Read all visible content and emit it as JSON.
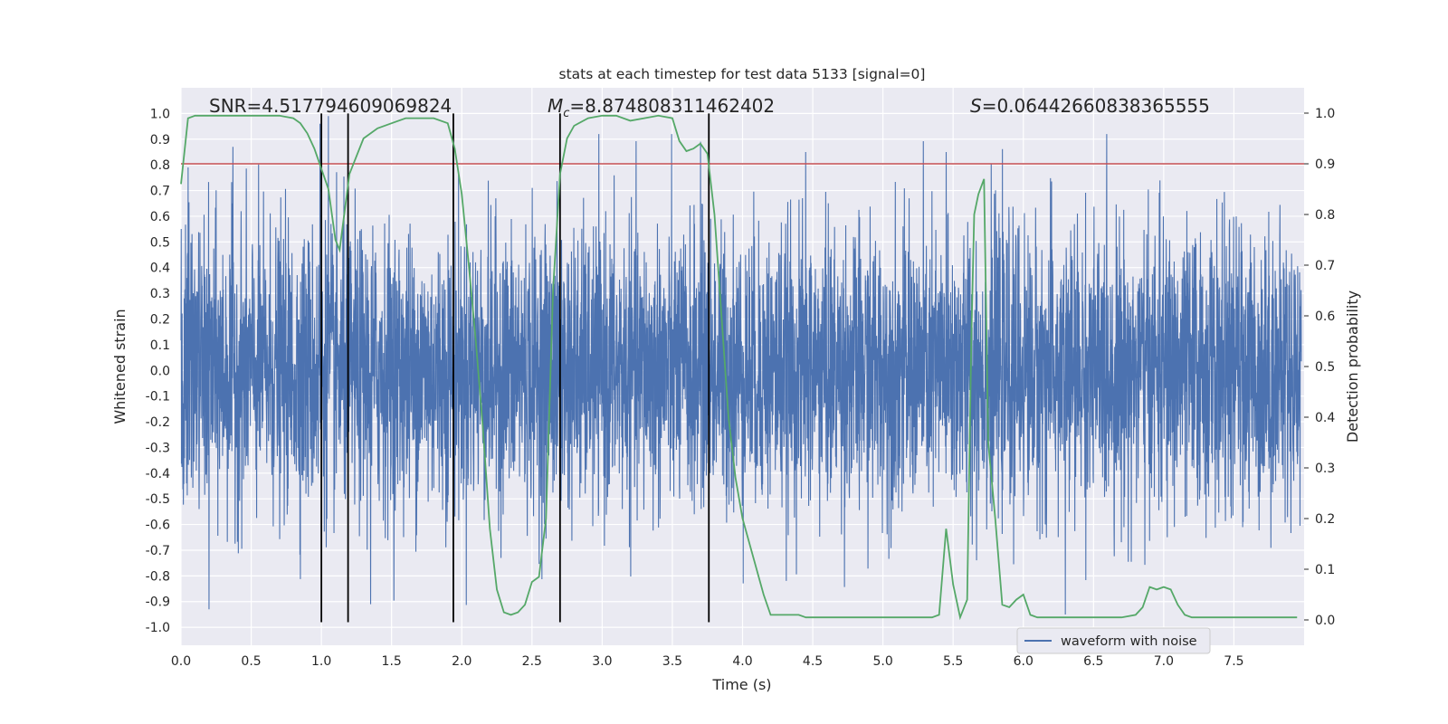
{
  "chart_data": {
    "type": "line",
    "title": "stats at each timestep for test data 5133 [signal=0]",
    "xlabel": "Time (s)",
    "ylabel_left": "Whitened strain",
    "ylabel_right": "Detection probability",
    "xlim": [
      0.0,
      8.0
    ],
    "ylim_left": [
      -1.07,
      1.1
    ],
    "ylim_right": [
      -0.05,
      1.05
    ],
    "xticks": [
      "0.0",
      "0.5",
      "1.0",
      "1.5",
      "2.0",
      "2.5",
      "3.0",
      "3.5",
      "4.0",
      "4.5",
      "5.0",
      "5.5",
      "6.0",
      "6.5",
      "7.0",
      "7.5"
    ],
    "yticks_left": [
      "1.0",
      "0.9",
      "0.8",
      "0.7",
      "0.6",
      "0.5",
      "0.4",
      "0.3",
      "0.2",
      "0.1",
      "0.0",
      "-0.1",
      "-0.2",
      "-0.3",
      "-0.4",
      "-0.5",
      "-0.6",
      "-0.7",
      "-0.8",
      "-0.9",
      "-1.0"
    ],
    "yticks_right": [
      "1.0",
      "0.9",
      "0.8",
      "0.7",
      "0.6",
      "0.5",
      "0.4",
      "0.3",
      "0.2",
      "0.1",
      "0.0"
    ],
    "annotations": {
      "snr": "SNR=4.517794609069824",
      "mc_symbol": "M",
      "mc_sub": "c",
      "mc_value": "=8.874808311462402",
      "s_symbol": "S",
      "s_value": "=0.06442660838365555"
    },
    "threshold": {
      "value_right_axis": 0.9,
      "color": "#c44e52"
    },
    "vertical_lines_time": [
      1.0,
      1.19,
      1.94,
      2.7,
      3.76
    ],
    "series": [
      {
        "name": "waveform with noise",
        "axis": "left",
        "color": "#4c72b0",
        "description_points": [
          {
            "x": 0.05,
            "y": 0.79
          },
          {
            "x": 0.2,
            "y": -0.93
          },
          {
            "x": 0.37,
            "y": 0.87
          },
          {
            "x": 0.99,
            "y": 0.96
          },
          {
            "x": 1.05,
            "y": 0.99
          },
          {
            "x": 1.35,
            "y": -0.91
          },
          {
            "x": 3.7,
            "y": 0.89
          },
          {
            "x": 4.45,
            "y": 0.85
          },
          {
            "x": 5.45,
            "y": 0.85
          },
          {
            "x": 6.3,
            "y": 0.96
          },
          {
            "x": 6.3,
            "y": -0.95
          }
        ]
      },
      {
        "name": "detection probability",
        "axis": "right",
        "color": "#55a868",
        "x": [
          0.0,
          0.05,
          0.1,
          0.2,
          0.3,
          0.4,
          0.5,
          0.6,
          0.7,
          0.8,
          0.85,
          0.9,
          0.95,
          1.0,
          1.05,
          1.1,
          1.13,
          1.2,
          1.3,
          1.4,
          1.5,
          1.6,
          1.7,
          1.8,
          1.9,
          1.95,
          2.0,
          2.05,
          2.1,
          2.15,
          2.2,
          2.25,
          2.3,
          2.35,
          2.4,
          2.45,
          2.5,
          2.55,
          2.6,
          2.65,
          2.7,
          2.75,
          2.8,
          2.9,
          3.0,
          3.1,
          3.2,
          3.3,
          3.4,
          3.5,
          3.55,
          3.6,
          3.65,
          3.7,
          3.75,
          3.8,
          3.85,
          3.9,
          3.95,
          4.0,
          4.05,
          4.1,
          4.15,
          4.2,
          4.25,
          4.3,
          4.35,
          4.4,
          4.45,
          4.5,
          4.6,
          4.7,
          4.8,
          4.9,
          5.0,
          5.2,
          5.35,
          5.4,
          5.45,
          5.5,
          5.55,
          5.6,
          5.63,
          5.65,
          5.68,
          5.72,
          5.75,
          5.8,
          5.85,
          5.9,
          5.95,
          6.0,
          6.05,
          6.1,
          6.15,
          6.3,
          6.5,
          6.7,
          6.8,
          6.85,
          6.9,
          6.95,
          7.0,
          7.05,
          7.1,
          7.15,
          7.2,
          7.3,
          7.4,
          7.6,
          7.8,
          7.95
        ],
        "y": [
          0.86,
          0.99,
          0.995,
          0.995,
          0.995,
          0.995,
          0.995,
          0.995,
          0.995,
          0.99,
          0.98,
          0.96,
          0.93,
          0.89,
          0.85,
          0.75,
          0.73,
          0.88,
          0.95,
          0.97,
          0.98,
          0.99,
          0.99,
          0.99,
          0.98,
          0.93,
          0.84,
          0.7,
          0.55,
          0.38,
          0.18,
          0.06,
          0.015,
          0.01,
          0.015,
          0.03,
          0.075,
          0.085,
          0.2,
          0.65,
          0.88,
          0.95,
          0.975,
          0.99,
          0.995,
          0.995,
          0.985,
          0.99,
          0.995,
          0.99,
          0.945,
          0.925,
          0.93,
          0.94,
          0.92,
          0.8,
          0.6,
          0.4,
          0.28,
          0.2,
          0.15,
          0.1,
          0.05,
          0.01,
          0.01,
          0.01,
          0.01,
          0.01,
          0.005,
          0.005,
          0.005,
          0.005,
          0.005,
          0.005,
          0.005,
          0.005,
          0.005,
          0.01,
          0.18,
          0.07,
          0.005,
          0.04,
          0.56,
          0.8,
          0.84,
          0.87,
          0.35,
          0.2,
          0.03,
          0.025,
          0.04,
          0.05,
          0.01,
          0.005,
          0.005,
          0.005,
          0.005,
          0.005,
          0.01,
          0.025,
          0.065,
          0.06,
          0.065,
          0.06,
          0.03,
          0.01,
          0.005,
          0.005,
          0.005,
          0.005,
          0.005,
          0.005
        ]
      }
    ],
    "legend": {
      "label": "waveform with noise",
      "placement": "lower-right"
    }
  }
}
